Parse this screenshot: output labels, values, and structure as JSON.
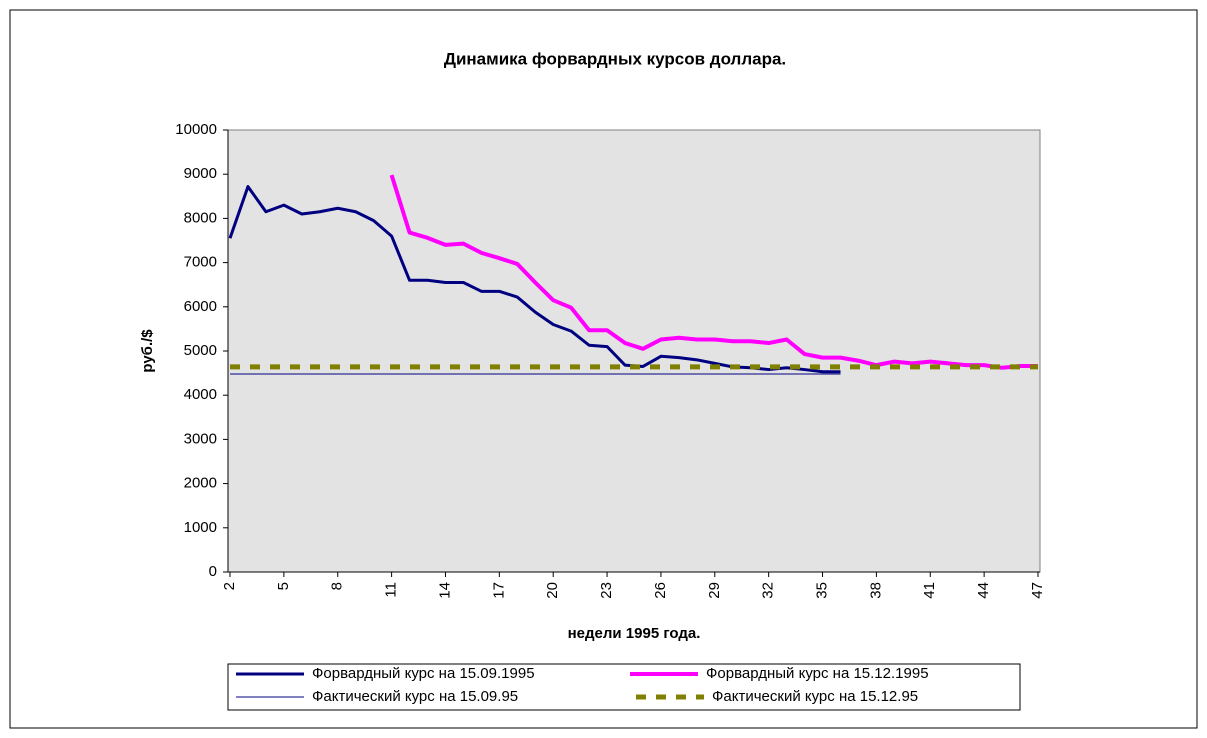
{
  "chart_data": {
    "type": "line",
    "title": "Динамика форвардных курсов доллара.",
    "xlabel": "недели 1995 года.",
    "ylabel": "руб./$",
    "x": [
      2,
      3,
      4,
      5,
      6,
      7,
      8,
      9,
      10,
      11,
      12,
      13,
      14,
      15,
      16,
      17,
      18,
      19,
      20,
      21,
      22,
      23,
      24,
      25,
      26,
      27,
      28,
      29,
      30,
      31,
      32,
      33,
      34,
      35,
      36,
      37,
      38,
      39,
      40,
      41,
      42,
      43,
      44,
      45,
      46,
      47
    ],
    "xlim": [
      2,
      47
    ],
    "xticks": [
      2,
      5,
      8,
      11,
      14,
      17,
      20,
      23,
      26,
      29,
      32,
      35,
      38,
      41,
      44,
      47
    ],
    "ylim": [
      0,
      10000
    ],
    "yticks": [
      0,
      1000,
      2000,
      3000,
      4000,
      5000,
      6000,
      7000,
      8000,
      9000,
      10000
    ],
    "series": [
      {
        "name": "Форвардный курс на 15.09.1995",
        "color": "#000080",
        "width": 3,
        "values": [
          7550,
          8720,
          8150,
          8300,
          8100,
          8150,
          8230,
          8150,
          7950,
          7600,
          6600,
          6600,
          6550,
          6550,
          6350,
          6350,
          6220,
          5880,
          5600,
          5450,
          5130,
          5100,
          4680,
          4650,
          4880,
          4850,
          4800,
          4720,
          4640,
          4620,
          4580,
          4620,
          4580,
          4530,
          4530,
          null,
          null,
          null,
          null,
          null,
          null,
          null,
          null,
          null,
          null,
          null
        ]
      },
      {
        "name": "Форвардный курс на 15.12.1995",
        "color": "#ff00ff",
        "width": 4,
        "values": [
          null,
          null,
          null,
          null,
          null,
          null,
          null,
          null,
          null,
          8980,
          7680,
          7560,
          7400,
          7430,
          7220,
          7100,
          6970,
          6550,
          6150,
          5980,
          5470,
          5470,
          5180,
          5050,
          5260,
          5300,
          5260,
          5260,
          5220,
          5220,
          5180,
          5260,
          4930,
          4850,
          4850,
          4780,
          4680,
          4760,
          4720,
          4760,
          4720,
          4680,
          4680,
          4620,
          4660,
          4660
        ]
      },
      {
        "name": "Фактический курс на 15.09.95",
        "color": "#000080",
        "width": 1,
        "values": [
          4480,
          4480,
          4480,
          4480,
          4480,
          4480,
          4480,
          4480,
          4480,
          4480,
          4480,
          4480,
          4480,
          4480,
          4480,
          4480,
          4480,
          4480,
          4480,
          4480,
          4480,
          4480,
          4480,
          4480,
          4480,
          4480,
          4480,
          4480,
          4480,
          4480,
          4480,
          4480,
          4480,
          4480,
          4480,
          null,
          null,
          null,
          null,
          null,
          null,
          null,
          null,
          null,
          null,
          null
        ]
      },
      {
        "name": "Фактический курс на 15.12.95",
        "color": "#808000",
        "width": 5,
        "dashed": true,
        "values": [
          4640,
          4640,
          4640,
          4640,
          4640,
          4640,
          4640,
          4640,
          4640,
          4640,
          4640,
          4640,
          4640,
          4640,
          4640,
          4640,
          4640,
          4640,
          4640,
          4640,
          4640,
          4640,
          4640,
          4640,
          4640,
          4640,
          4640,
          4640,
          4640,
          4640,
          4640,
          4640,
          4640,
          4640,
          4640,
          4640,
          4640,
          4640,
          4640,
          4640,
          4640,
          4640,
          4640,
          4640,
          4640,
          4640
        ]
      }
    ]
  }
}
